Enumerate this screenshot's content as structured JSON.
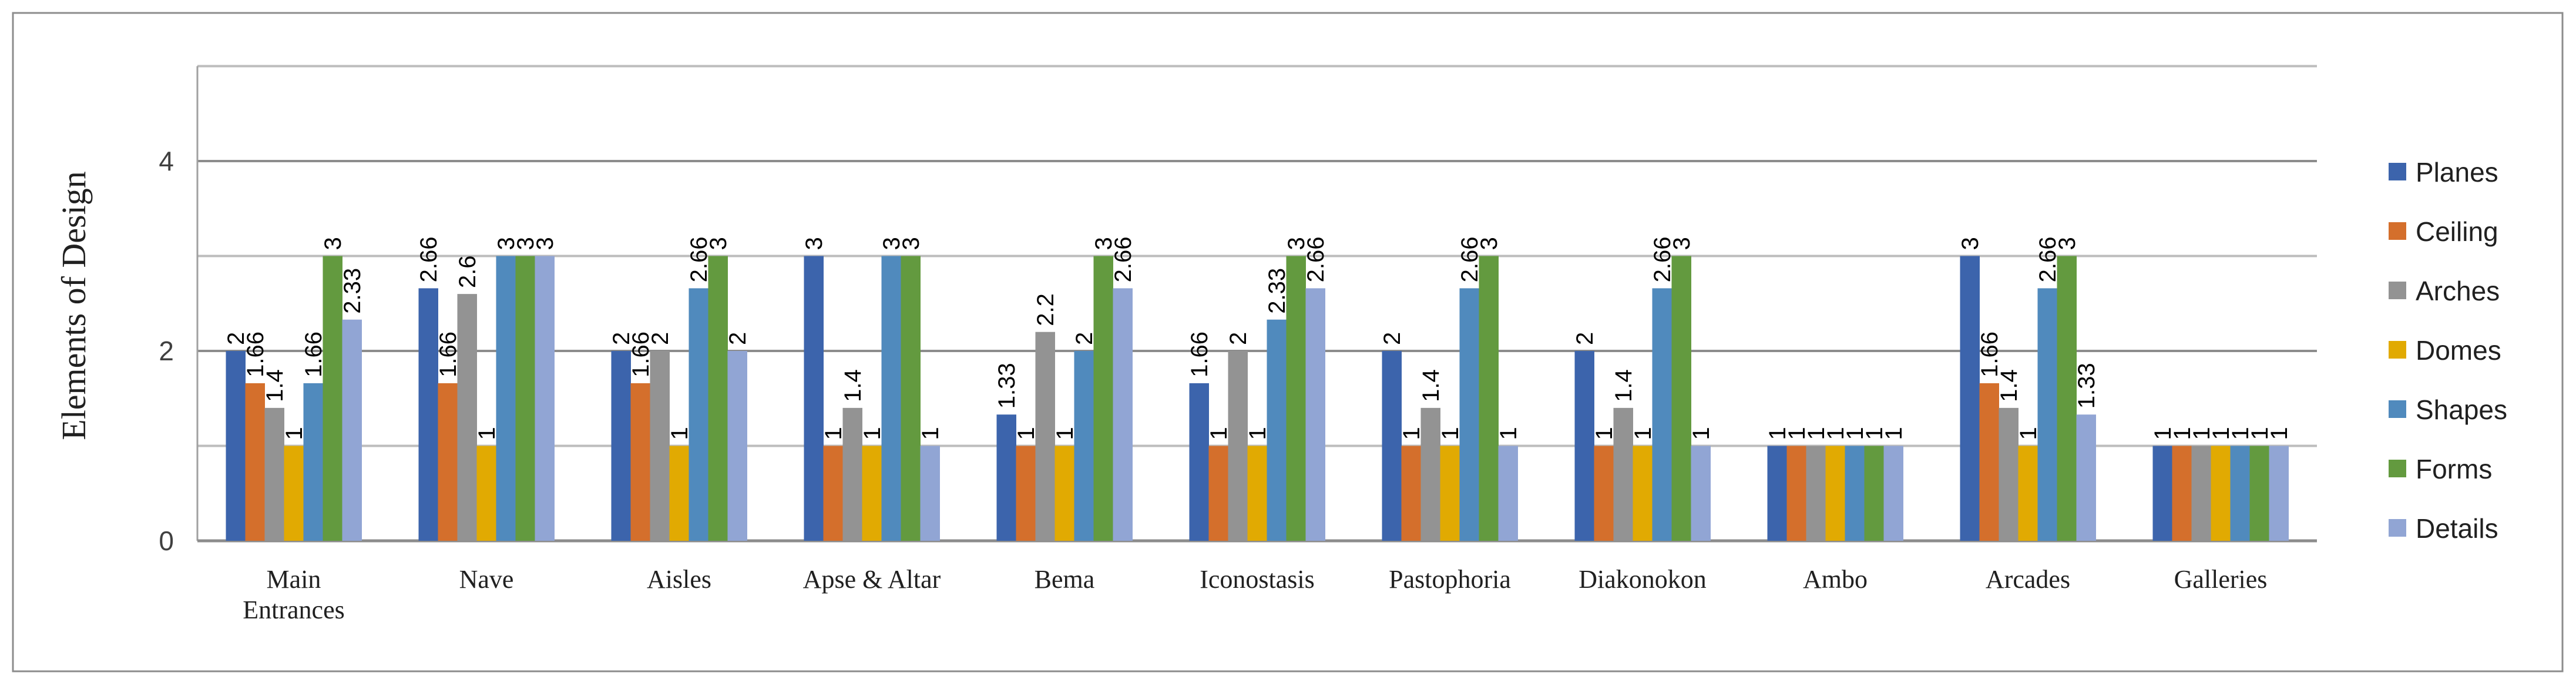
{
  "chart_data": {
    "type": "bar",
    "title": "",
    "xlabel": "",
    "ylabel": "Elements of Design",
    "ylim": [
      0,
      5
    ],
    "yticks": [
      "0",
      "2",
      "4"
    ],
    "grid": true,
    "legend_position": "right",
    "categories": [
      [
        "Main",
        "Entrances"
      ],
      [
        "Nave"
      ],
      [
        "Aisles"
      ],
      [
        "Apse & Altar"
      ],
      [
        "Bema"
      ],
      [
        "Iconostasis"
      ],
      [
        "Pastophoria"
      ],
      [
        "Diakonokon"
      ],
      [
        "Ambo"
      ],
      [
        "Arcades"
      ],
      [
        "Galleries"
      ]
    ],
    "series": [
      {
        "name": "Planes",
        "color": "#3C64AC",
        "values": [
          2,
          2.66,
          2,
          3,
          1.33,
          1.66,
          2,
          2,
          1,
          3,
          1
        ]
      },
      {
        "name": "Ceiling",
        "color": "#D46F2C",
        "values": [
          1.66,
          1.66,
          1.66,
          1,
          1,
          1,
          1,
          1,
          1,
          1.66,
          1
        ]
      },
      {
        "name": "Arches",
        "color": "#939393",
        "values": [
          1.4,
          2.6,
          2,
          1.4,
          2.2,
          2,
          1.4,
          1.4,
          1,
          1.4,
          1
        ]
      },
      {
        "name": "Domes",
        "color": "#E1AA02",
        "values": [
          1,
          1,
          1,
          1,
          1,
          1,
          1,
          1,
          1,
          1,
          1
        ]
      },
      {
        "name": "Shapes",
        "color": "#508ABD",
        "values": [
          1.66,
          3,
          2.66,
          3,
          2,
          2.33,
          2.66,
          2.66,
          1,
          2.66,
          1
        ]
      },
      {
        "name": "Forms",
        "color": "#639A3F",
        "values": [
          3,
          3,
          3,
          3,
          3,
          3,
          3,
          3,
          1,
          3,
          1
        ]
      },
      {
        "name": "Details",
        "color": "#91A5D4",
        "values": [
          2.33,
          3,
          2,
          1,
          2.66,
          2.66,
          1,
          1,
          1,
          1.33,
          1
        ]
      }
    ]
  }
}
